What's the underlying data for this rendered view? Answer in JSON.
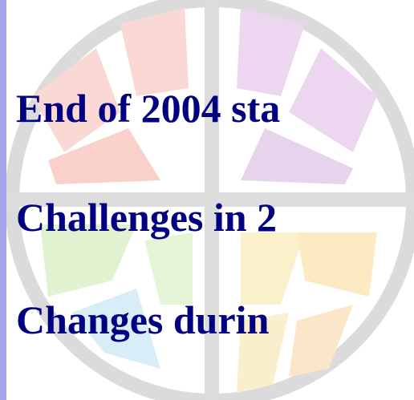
{
  "lines": [
    "End of 2004 sta",
    "Challenges in 2",
    "Changes durin"
  ]
}
